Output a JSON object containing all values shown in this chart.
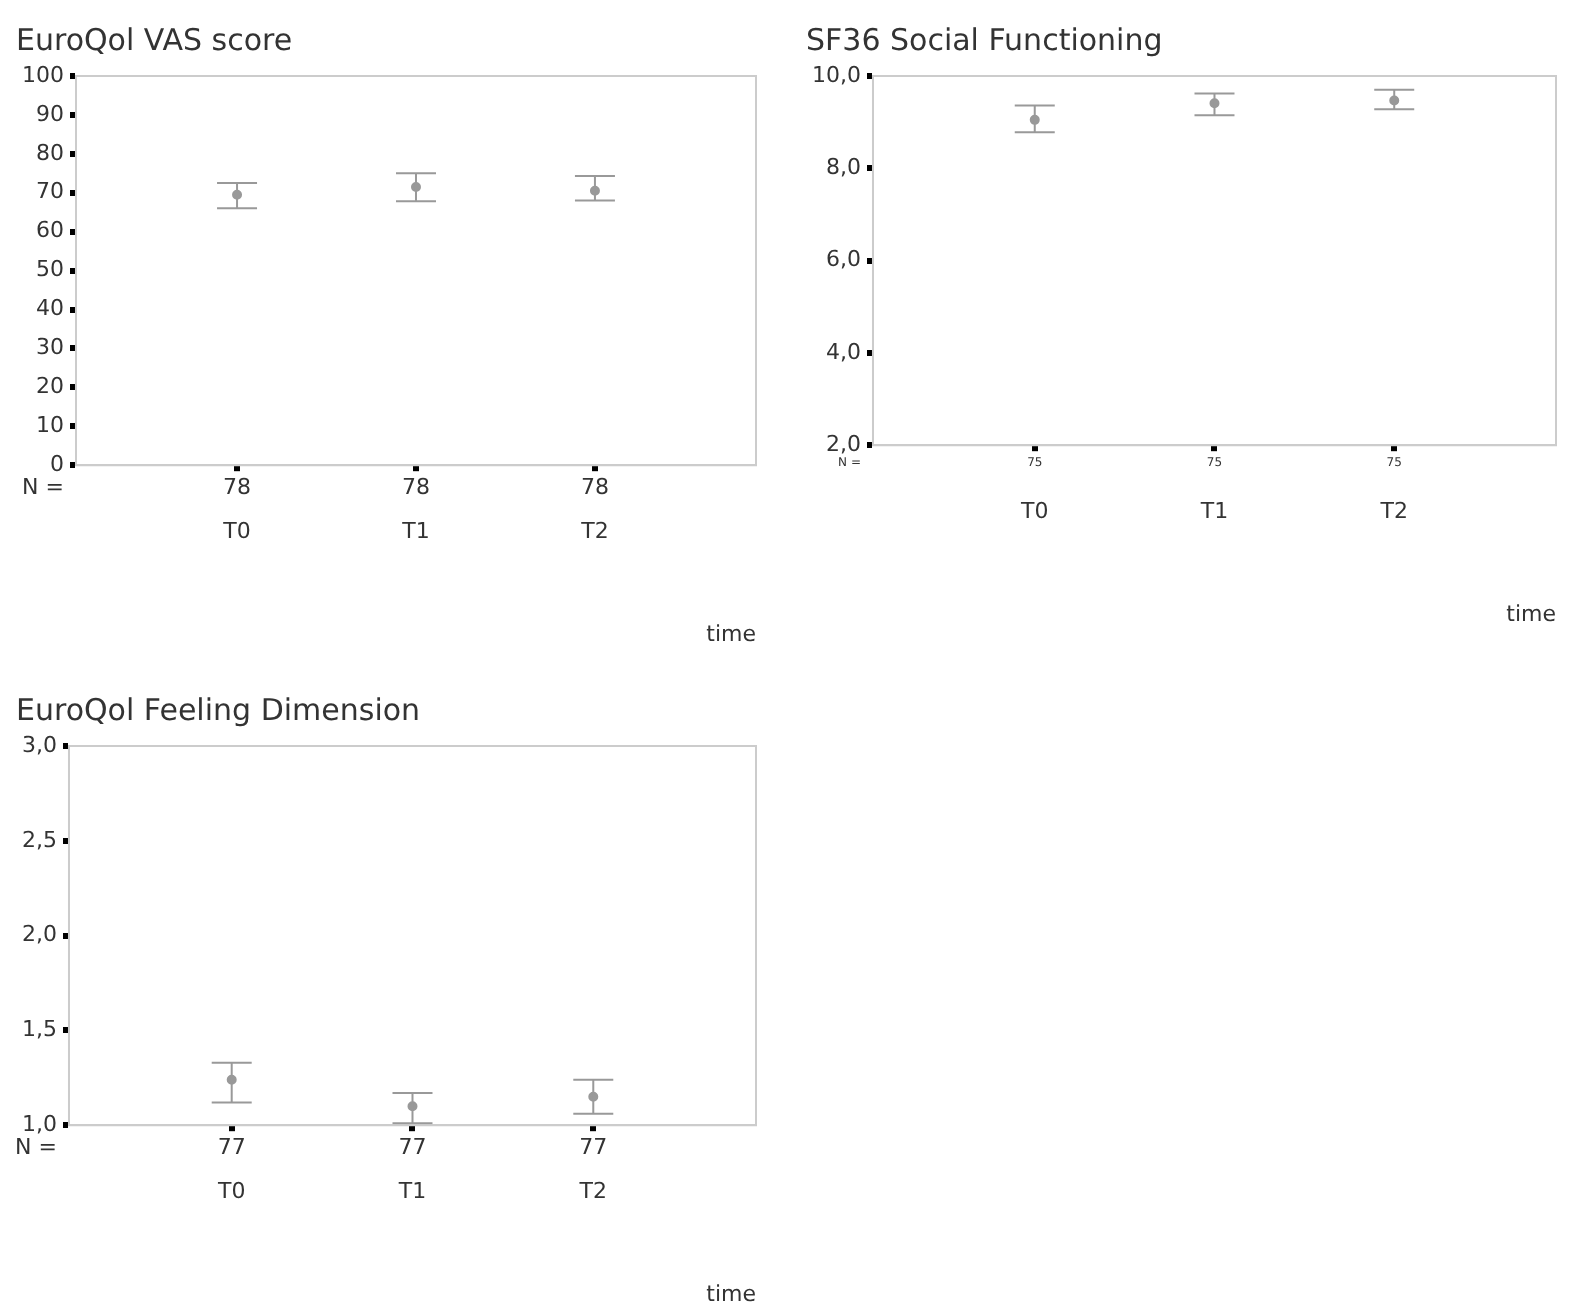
{
  "chart_data": [
    {
      "type": "scatter",
      "title": "EuroQol VAS score",
      "xlabel": "time",
      "categories": [
        "T0",
        "T1",
        "T2"
      ],
      "ylim": [
        0,
        100
      ],
      "yticks": [
        0,
        10,
        20,
        30,
        40,
        50,
        60,
        70,
        80,
        90,
        100
      ],
      "grid": false,
      "legend": false,
      "marker": "circle",
      "series": [
        {
          "color": "#999999",
          "x": [
            "T0",
            "T1",
            "T2"
          ],
          "values": [
            69.5,
            71.5,
            70.5
          ],
          "errors": [
            [
              66,
              72.5
            ],
            [
              67.8,
              75
            ],
            [
              68,
              74.3
            ]
          ]
        }
      ],
      "annotations": [
        "N =",
        "78",
        "78",
        "78"
      ]
    },
    {
      "type": "scatter",
      "title": "SF36 Social Functioning",
      "xlabel": "time",
      "categories": [
        "T0",
        "T1",
        "T2"
      ],
      "ylim": [
        2,
        10
      ],
      "yticks": [
        {
          "value": 2,
          "label": "2,0"
        },
        {
          "value": 4,
          "label": "4,0"
        },
        {
          "value": 6,
          "label": "6,0"
        },
        {
          "value": 8,
          "label": "8,0"
        },
        {
          "value": 10,
          "label": "10,0"
        }
      ],
      "grid": false,
      "legend": false,
      "marker": "circle",
      "series": [
        {
          "color": "#999999",
          "x": [
            "T0",
            "T1",
            "T2"
          ],
          "values": [
            9.05,
            9.41,
            9.47
          ],
          "errors": [
            [
              8.78,
              9.36
            ],
            [
              9.15,
              9.62
            ],
            [
              9.28,
              9.7
            ]
          ]
        }
      ],
      "annotations": [
        "N =",
        "75",
        "75",
        "75"
      ]
    },
    {
      "type": "scatter",
      "title": "EuroQol Feeling Dimension",
      "xlabel": "time",
      "categories": [
        "T0",
        "T1",
        "T2"
      ],
      "ylim": [
        1,
        3
      ],
      "yticks": [
        {
          "value": 1,
          "label": "1,0"
        },
        {
          "value": 1.5,
          "label": "1,5"
        },
        {
          "value": 2,
          "label": "2,0"
        },
        {
          "value": 2.5,
          "label": "2,5"
        },
        {
          "value": 3,
          "label": "3,0"
        }
      ],
      "grid": false,
      "legend": false,
      "marker": "circle",
      "series": [
        {
          "color": "#999999",
          "x": [
            "T0",
            "T1",
            "T2"
          ],
          "values": [
            1.24,
            1.1,
            1.15
          ],
          "errors": [
            [
              1.12,
              1.33
            ],
            [
              1.01,
              1.17
            ],
            [
              1.06,
              1.24
            ]
          ]
        }
      ],
      "annotations": [
        "N =",
        "77",
        "77",
        "77"
      ]
    }
  ]
}
